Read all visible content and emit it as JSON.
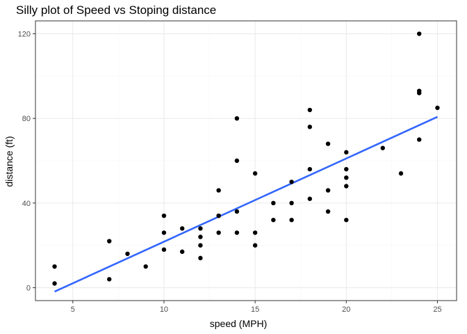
{
  "chart_data": {
    "type": "scatter",
    "title": "Silly plot of Speed vs Stoping distance",
    "xlabel": "speed (MPH)",
    "ylabel": "distance (ft)",
    "xlim": [
      2.95,
      26.05
    ],
    "ylim": [
      -6.1,
      126.1
    ],
    "x_ticks": [
      5,
      10,
      15,
      20,
      25
    ],
    "y_ticks": [
      0,
      40,
      80,
      120
    ],
    "x_tick_labels": [
      "5",
      "10",
      "15",
      "20",
      "25"
    ],
    "y_tick_labels": [
      "0",
      "40",
      "80",
      "120"
    ],
    "grid": true,
    "legend": "none",
    "points": [
      [
        4,
        2
      ],
      [
        4,
        10
      ],
      [
        7,
        4
      ],
      [
        7,
        22
      ],
      [
        8,
        16
      ],
      [
        9,
        10
      ],
      [
        10,
        18
      ],
      [
        10,
        26
      ],
      [
        10,
        34
      ],
      [
        11,
        17
      ],
      [
        11,
        28
      ],
      [
        12,
        14
      ],
      [
        12,
        20
      ],
      [
        12,
        24
      ],
      [
        12,
        28
      ],
      [
        13,
        26
      ],
      [
        13,
        34
      ],
      [
        13,
        34
      ],
      [
        13,
        46
      ],
      [
        14,
        26
      ],
      [
        14,
        36
      ],
      [
        14,
        60
      ],
      [
        14,
        80
      ],
      [
        15,
        20
      ],
      [
        15,
        26
      ],
      [
        15,
        54
      ],
      [
        16,
        32
      ],
      [
        16,
        40
      ],
      [
        17,
        32
      ],
      [
        17,
        40
      ],
      [
        17,
        50
      ],
      [
        18,
        42
      ],
      [
        18,
        56
      ],
      [
        18,
        76
      ],
      [
        18,
        84
      ],
      [
        19,
        36
      ],
      [
        19,
        46
      ],
      [
        19,
        68
      ],
      [
        20,
        32
      ],
      [
        20,
        48
      ],
      [
        20,
        52
      ],
      [
        20,
        56
      ],
      [
        20,
        64
      ],
      [
        22,
        66
      ],
      [
        23,
        54
      ],
      [
        24,
        70
      ],
      [
        24,
        92
      ],
      [
        24,
        93
      ],
      [
        24,
        120
      ],
      [
        25,
        85
      ]
    ],
    "trend_line": {
      "x": [
        4,
        25
      ],
      "y": [
        -1.85,
        80.73
      ]
    },
    "colors": {
      "points": "#000000",
      "trend_line": "#3366ff",
      "panel_border": "#333333",
      "grid_major": "#ebebeb",
      "grid_minor": "#f5f5f5",
      "background": "#ffffff"
    }
  }
}
